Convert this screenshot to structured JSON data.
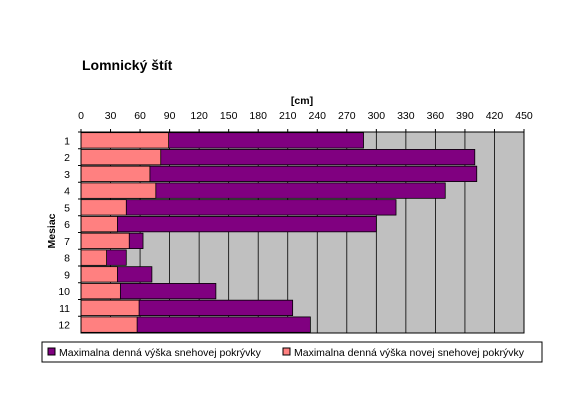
{
  "chart_data": {
    "type": "bar",
    "orientation": "horizontal",
    "title": "Lomnický štít",
    "xlabel": "[cm]",
    "ylabel": "Mesiac",
    "xlim": [
      0,
      450
    ],
    "xticks": [
      "0",
      "30",
      "60",
      "90",
      "120",
      "150",
      "180",
      "210",
      "240",
      "270",
      "300",
      "330",
      "360",
      "390",
      "420",
      "450"
    ],
    "categories": [
      "1",
      "2",
      "3",
      "4",
      "5",
      "6",
      "7",
      "8",
      "9",
      "10",
      "11",
      "12"
    ],
    "series": [
      {
        "name": "Maximalna denná výška snehovej pokrývky",
        "color": "#800080",
        "values": [
          287,
          400,
          402,
          370,
          320,
          300,
          63,
          46,
          72,
          137,
          215,
          233
        ]
      },
      {
        "name": "Maximalna denná výška novej snehovej pokrývky",
        "color": "#ff8080",
        "values": [
          89,
          81,
          70,
          76,
          46,
          37,
          49,
          26,
          37,
          40,
          59,
          57
        ]
      }
    ],
    "plot_background": "#c0c0c0",
    "grid": true,
    "legend_position": "bottom"
  }
}
